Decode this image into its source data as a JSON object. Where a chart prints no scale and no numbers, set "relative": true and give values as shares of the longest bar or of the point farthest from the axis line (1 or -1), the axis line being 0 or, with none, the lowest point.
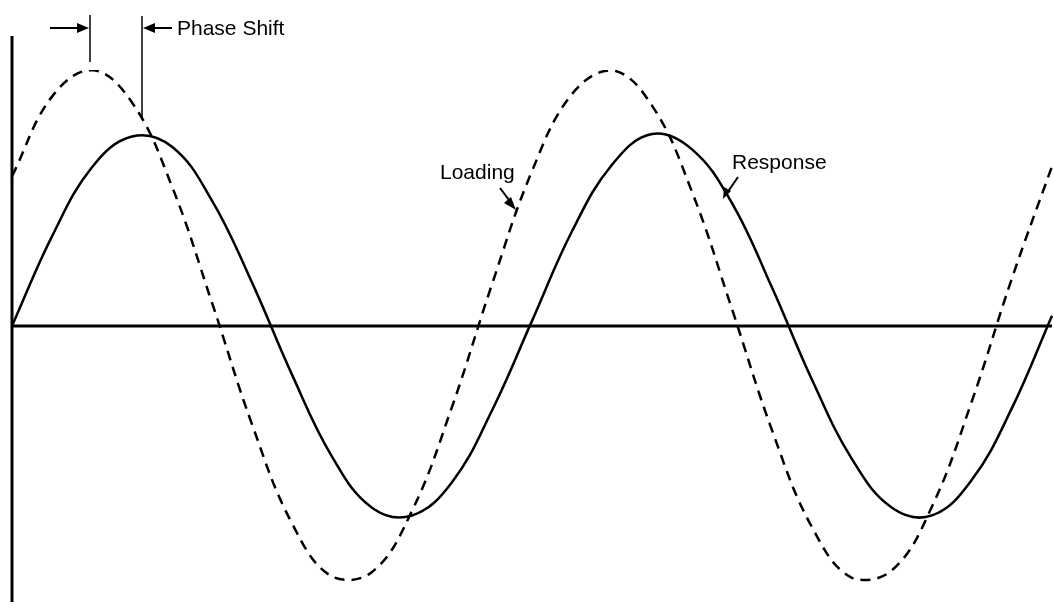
{
  "chart_data": {
    "type": "line",
    "relative": true,
    "legend": false,
    "marker": "none",
    "categories": [
      null,
      null,
      null,
      null,
      null,
      null,
      null,
      null,
      null,
      null,
      null,
      null,
      null,
      null,
      null,
      null,
      null,
      null,
      null,
      null,
      null,
      null,
      null,
      null,
      null,
      null,
      null
    ],
    "series": [
      {
        "name": "Loading",
        "color": "#000000",
        "line_style": "dashed",
        "values": [
          0.585,
          0.896,
          1.0,
          0.873,
          0.545,
          0.091,
          -0.384,
          -0.771,
          -0.979,
          -0.961,
          -0.722,
          -0.316,
          0.163,
          0.605,
          0.906,
          0.999,
          0.861,
          0.524,
          0.066,
          -0.407,
          -0.786,
          -0.984,
          -0.954,
          -0.705,
          -0.292,
          0.187,
          0.624
        ]
      },
      {
        "name": "Response",
        "color": "#000000",
        "line_style": "solid",
        "values": [
          0,
          0.35,
          0.62,
          0.74,
          0.7,
          0.49,
          0.17,
          -0.19,
          -0.51,
          -0.71,
          -0.74,
          -0.61,
          -0.33,
          0.02,
          0.37,
          0.63,
          0.75,
          0.69,
          0.48,
          0.15,
          -0.21,
          -0.52,
          -0.71,
          -0.74,
          -0.6,
          -0.32,
          0.04
        ]
      }
    ],
    "annotations": [
      "Phase Shift"
    ]
  }
}
